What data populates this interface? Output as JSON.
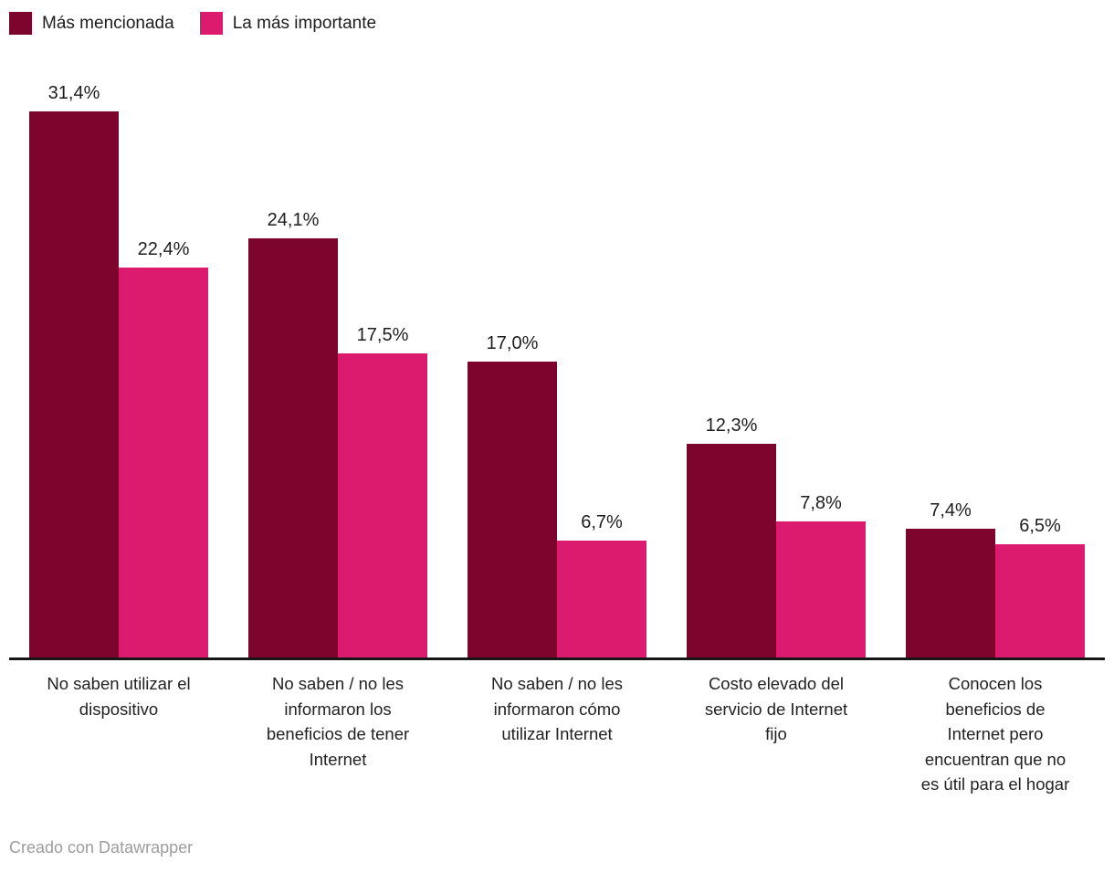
{
  "legend": {
    "items": [
      {
        "label": "Más mencionada",
        "color": "#7d052d"
      },
      {
        "label": "La más importante",
        "color": "#dc1a6e"
      }
    ]
  },
  "colors": {
    "background": "#ffffff",
    "axis": "#161616",
    "value_label_text": "#1d1d1d",
    "category_text": "#222222",
    "credit_text": "#9d9d9d"
  },
  "chart_data": {
    "type": "bar",
    "categories": [
      "No saben utilizar el dispositivo",
      "No saben / no les informaron los beneficios de tener Internet",
      "No saben / no les informaron cómo utilizar Internet",
      "Costo elevado del servicio de Internet fijo",
      "Conocen los beneficios de Internet pero encuentran que no es útil para el hogar"
    ],
    "category_label_lines": [
      [
        "No saben utilizar el",
        "dispositivo"
      ],
      [
        "No saben / no les",
        "informaron los",
        "beneficios de tener",
        "Internet"
      ],
      [
        "No saben / no les",
        "informaron cómo",
        "utilizar Internet"
      ],
      [
        "Costo elevado del",
        "servicio de Internet",
        "fijo"
      ],
      [
        "Conocen los",
        "beneficios de",
        "Internet pero",
        "encuentran que no",
        "es útil para el hogar"
      ]
    ],
    "series": [
      {
        "name": "Más mencionada",
        "color": "#7d052d",
        "values": [
          31.4,
          24.1,
          17.0,
          12.3,
          7.4
        ],
        "labels": [
          "31,4%",
          "24,1%",
          "17,0%",
          "12,3%",
          "7,4%"
        ]
      },
      {
        "name": "La más importante",
        "color": "#dc1a6e",
        "values": [
          22.4,
          17.5,
          6.7,
          7.8,
          6.5
        ],
        "labels": [
          "22,4%",
          "17,5%",
          "6,7%",
          "7,8%",
          "6,5%"
        ]
      }
    ],
    "xlabel": "",
    "ylabel": "",
    "ylim": [
      0,
      33
    ],
    "grid": false,
    "axis_ticks_visible": false,
    "legend_position": "top-left",
    "value_label_format": "percent-comma-decimal"
  },
  "footer": {
    "credit": "Creado con Datawrapper"
  }
}
